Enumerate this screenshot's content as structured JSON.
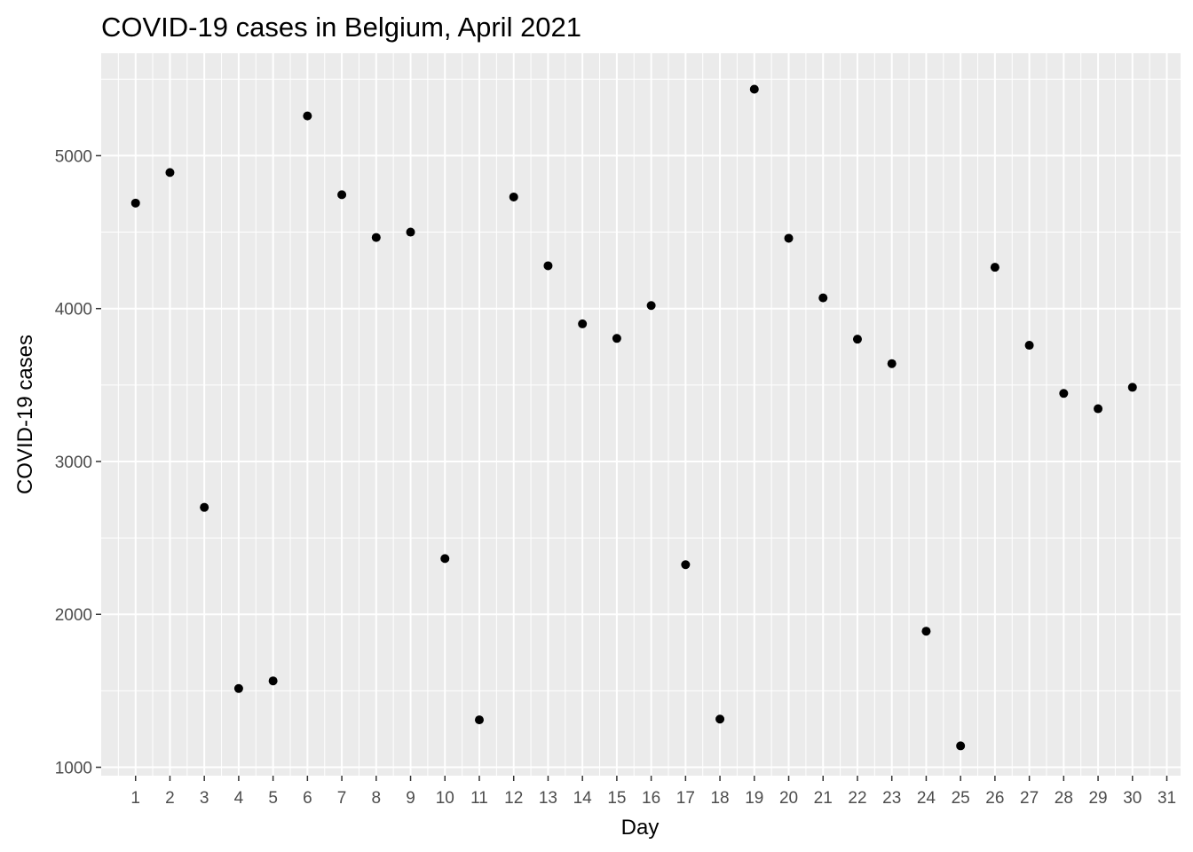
{
  "chart_data": {
    "type": "scatter",
    "title": "COVID-19 cases in Belgium, April 2021",
    "xlabel": "Day",
    "ylabel": "COVID-19 cases",
    "x": [
      1,
      2,
      3,
      4,
      5,
      6,
      7,
      8,
      9,
      10,
      11,
      12,
      13,
      14,
      15,
      16,
      17,
      18,
      19,
      20,
      21,
      22,
      23,
      24,
      25,
      26,
      27,
      28,
      29,
      30
    ],
    "y": [
      4690,
      4890,
      2700,
      1515,
      1565,
      5260,
      4745,
      4465,
      4500,
      2365,
      1310,
      4730,
      4280,
      3900,
      3805,
      4020,
      2325,
      1315,
      5435,
      4460,
      4070,
      3800,
      3640,
      1890,
      1140,
      4270,
      3760,
      3445,
      3345,
      3485
    ],
    "x_ticks": [
      "1",
      "2",
      "3",
      "4",
      "5",
      "6",
      "7",
      "8",
      "9",
      "10",
      "11",
      "12",
      "13",
      "14",
      "15",
      "16",
      "17",
      "18",
      "19",
      "20",
      "21",
      "22",
      "23",
      "24",
      "25",
      "26",
      "27",
      "28",
      "29",
      "30",
      "31"
    ],
    "y_ticks": [
      "1000",
      "2000",
      "3000",
      "4000",
      "5000"
    ],
    "xlim": [
      0,
      31.4
    ],
    "ylim": [
      945,
      5670
    ],
    "grid": true,
    "colors": {
      "panel": "#ebebeb",
      "grid": "#ffffff",
      "point": "#000000",
      "tick_text": "#4d4d4d",
      "tick_mark": "#333333"
    }
  }
}
